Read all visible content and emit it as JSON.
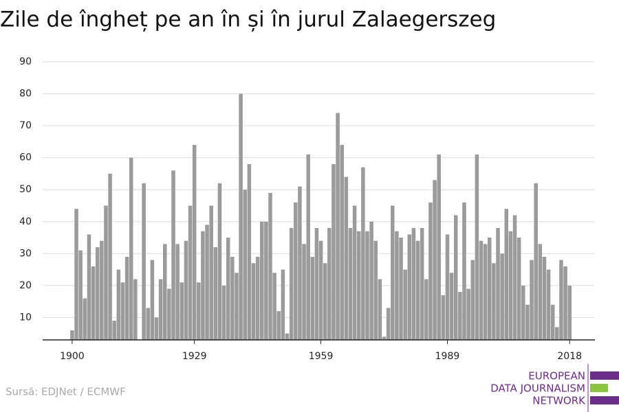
{
  "chart_data": {
    "type": "bar",
    "title": "Zile de îngheț pe an în și în jurul Zalaegerszeg",
    "source": "Sursă: EDJNet / ECMWF",
    "logo": [
      "EUROPEAN",
      "DATA JOURNALISM",
      "NETWORK"
    ],
    "color": "#9b9b9b",
    "grid": true,
    "x": [
      1900,
      1901,
      1902,
      1903,
      1904,
      1905,
      1906,
      1907,
      1908,
      1909,
      1910,
      1911,
      1912,
      1913,
      1914,
      1915,
      1916,
      1917,
      1918,
      1919,
      1920,
      1921,
      1922,
      1923,
      1924,
      1925,
      1926,
      1927,
      1928,
      1929,
      1930,
      1931,
      1932,
      1933,
      1934,
      1935,
      1936,
      1937,
      1938,
      1939,
      1940,
      1941,
      1942,
      1943,
      1944,
      1945,
      1946,
      1947,
      1948,
      1949,
      1950,
      1951,
      1952,
      1953,
      1954,
      1955,
      1956,
      1957,
      1958,
      1959,
      1960,
      1961,
      1962,
      1963,
      1964,
      1965,
      1966,
      1967,
      1968,
      1969,
      1970,
      1971,
      1972,
      1973,
      1974,
      1975,
      1976,
      1977,
      1978,
      1979,
      1980,
      1981,
      1982,
      1983,
      1984,
      1985,
      1986,
      1987,
      1988,
      1989,
      1990,
      1991,
      1992,
      1993,
      1994,
      1995,
      1996,
      1997,
      1998,
      1999,
      2000,
      2001,
      2002,
      2003,
      2004,
      2005,
      2006,
      2007,
      2008,
      2009,
      2010,
      2011,
      2012,
      2013,
      2014,
      2015,
      2016,
      2017,
      2018
    ],
    "values": [
      6,
      44,
      31,
      16,
      36,
      26,
      32,
      34,
      45,
      55,
      9,
      25,
      21,
      29,
      60,
      22,
      3,
      52,
      13,
      28,
      10,
      22,
      33,
      19,
      56,
      33,
      21,
      34,
      45,
      64,
      21,
      37,
      39,
      45,
      32,
      52,
      20,
      35,
      29,
      24,
      80,
      50,
      58,
      27,
      29,
      40,
      40,
      49,
      24,
      12,
      25,
      5,
      38,
      46,
      51,
      33,
      61,
      29,
      38,
      34,
      27,
      38,
      58,
      74,
      64,
      54,
      38,
      45,
      37,
      57,
      37,
      40,
      34,
      22,
      4,
      13,
      45,
      37,
      35,
      25,
      36,
      38,
      34,
      38,
      22,
      46,
      53,
      61,
      17,
      36,
      24,
      42,
      18,
      46,
      19,
      28,
      61,
      34,
      33,
      35,
      27,
      38,
      30,
      44,
      37,
      42,
      35,
      20,
      14,
      28,
      52,
      33,
      29,
      25,
      14,
      7,
      28,
      26,
      20
    ],
    "xlim": [
      1893,
      2024
    ],
    "xticks": [
      1900,
      1929,
      1959,
      1989,
      2018
    ],
    "ylim": [
      3,
      90
    ],
    "yticks": [
      10,
      20,
      30,
      40,
      50,
      60,
      70,
      80,
      90
    ]
  }
}
